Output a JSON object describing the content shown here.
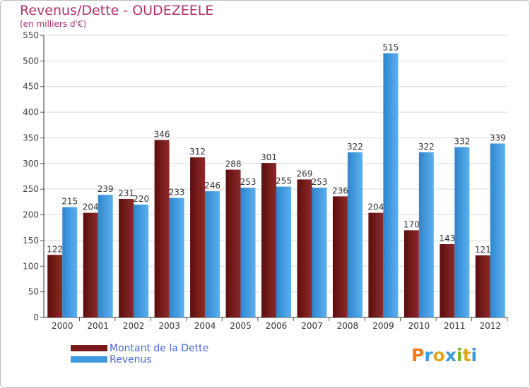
{
  "header": {
    "title": "Revenus/Dette - OUDEZEELE",
    "subtitle": "(en milliers d'€)"
  },
  "chart_data": {
    "type": "bar",
    "categories": [
      "2000",
      "2001",
      "2002",
      "2003",
      "2004",
      "2005",
      "2006",
      "2007",
      "2008",
      "2009",
      "2010",
      "2011",
      "2012"
    ],
    "series": [
      {
        "name": "Montant de la Dette",
        "color": "#7a1a1a",
        "values": [
          122,
          204,
          231,
          346,
          312,
          288,
          301,
          269,
          236,
          204,
          170,
          143,
          121
        ]
      },
      {
        "name": "Revenus",
        "color": "#3d9ae0",
        "values": [
          215,
          239,
          220,
          233,
          246,
          253,
          255,
          253,
          322,
          515,
          322,
          332,
          339
        ]
      }
    ],
    "ylim": [
      0,
      550
    ],
    "yticks": [
      0,
      50,
      100,
      150,
      200,
      250,
      300,
      350,
      400,
      450,
      500,
      550
    ],
    "grid": true,
    "legend": "bottom-left"
  },
  "logo": {
    "letters": [
      "P",
      "r",
      "o",
      "x",
      "i",
      "t",
      "i"
    ],
    "colors": [
      "#f07a1a",
      "#3a9ad9",
      "#e0a51e",
      "#3a9ad9",
      "#7bb321",
      "#e0a51e",
      "#3a9ad9"
    ]
  }
}
